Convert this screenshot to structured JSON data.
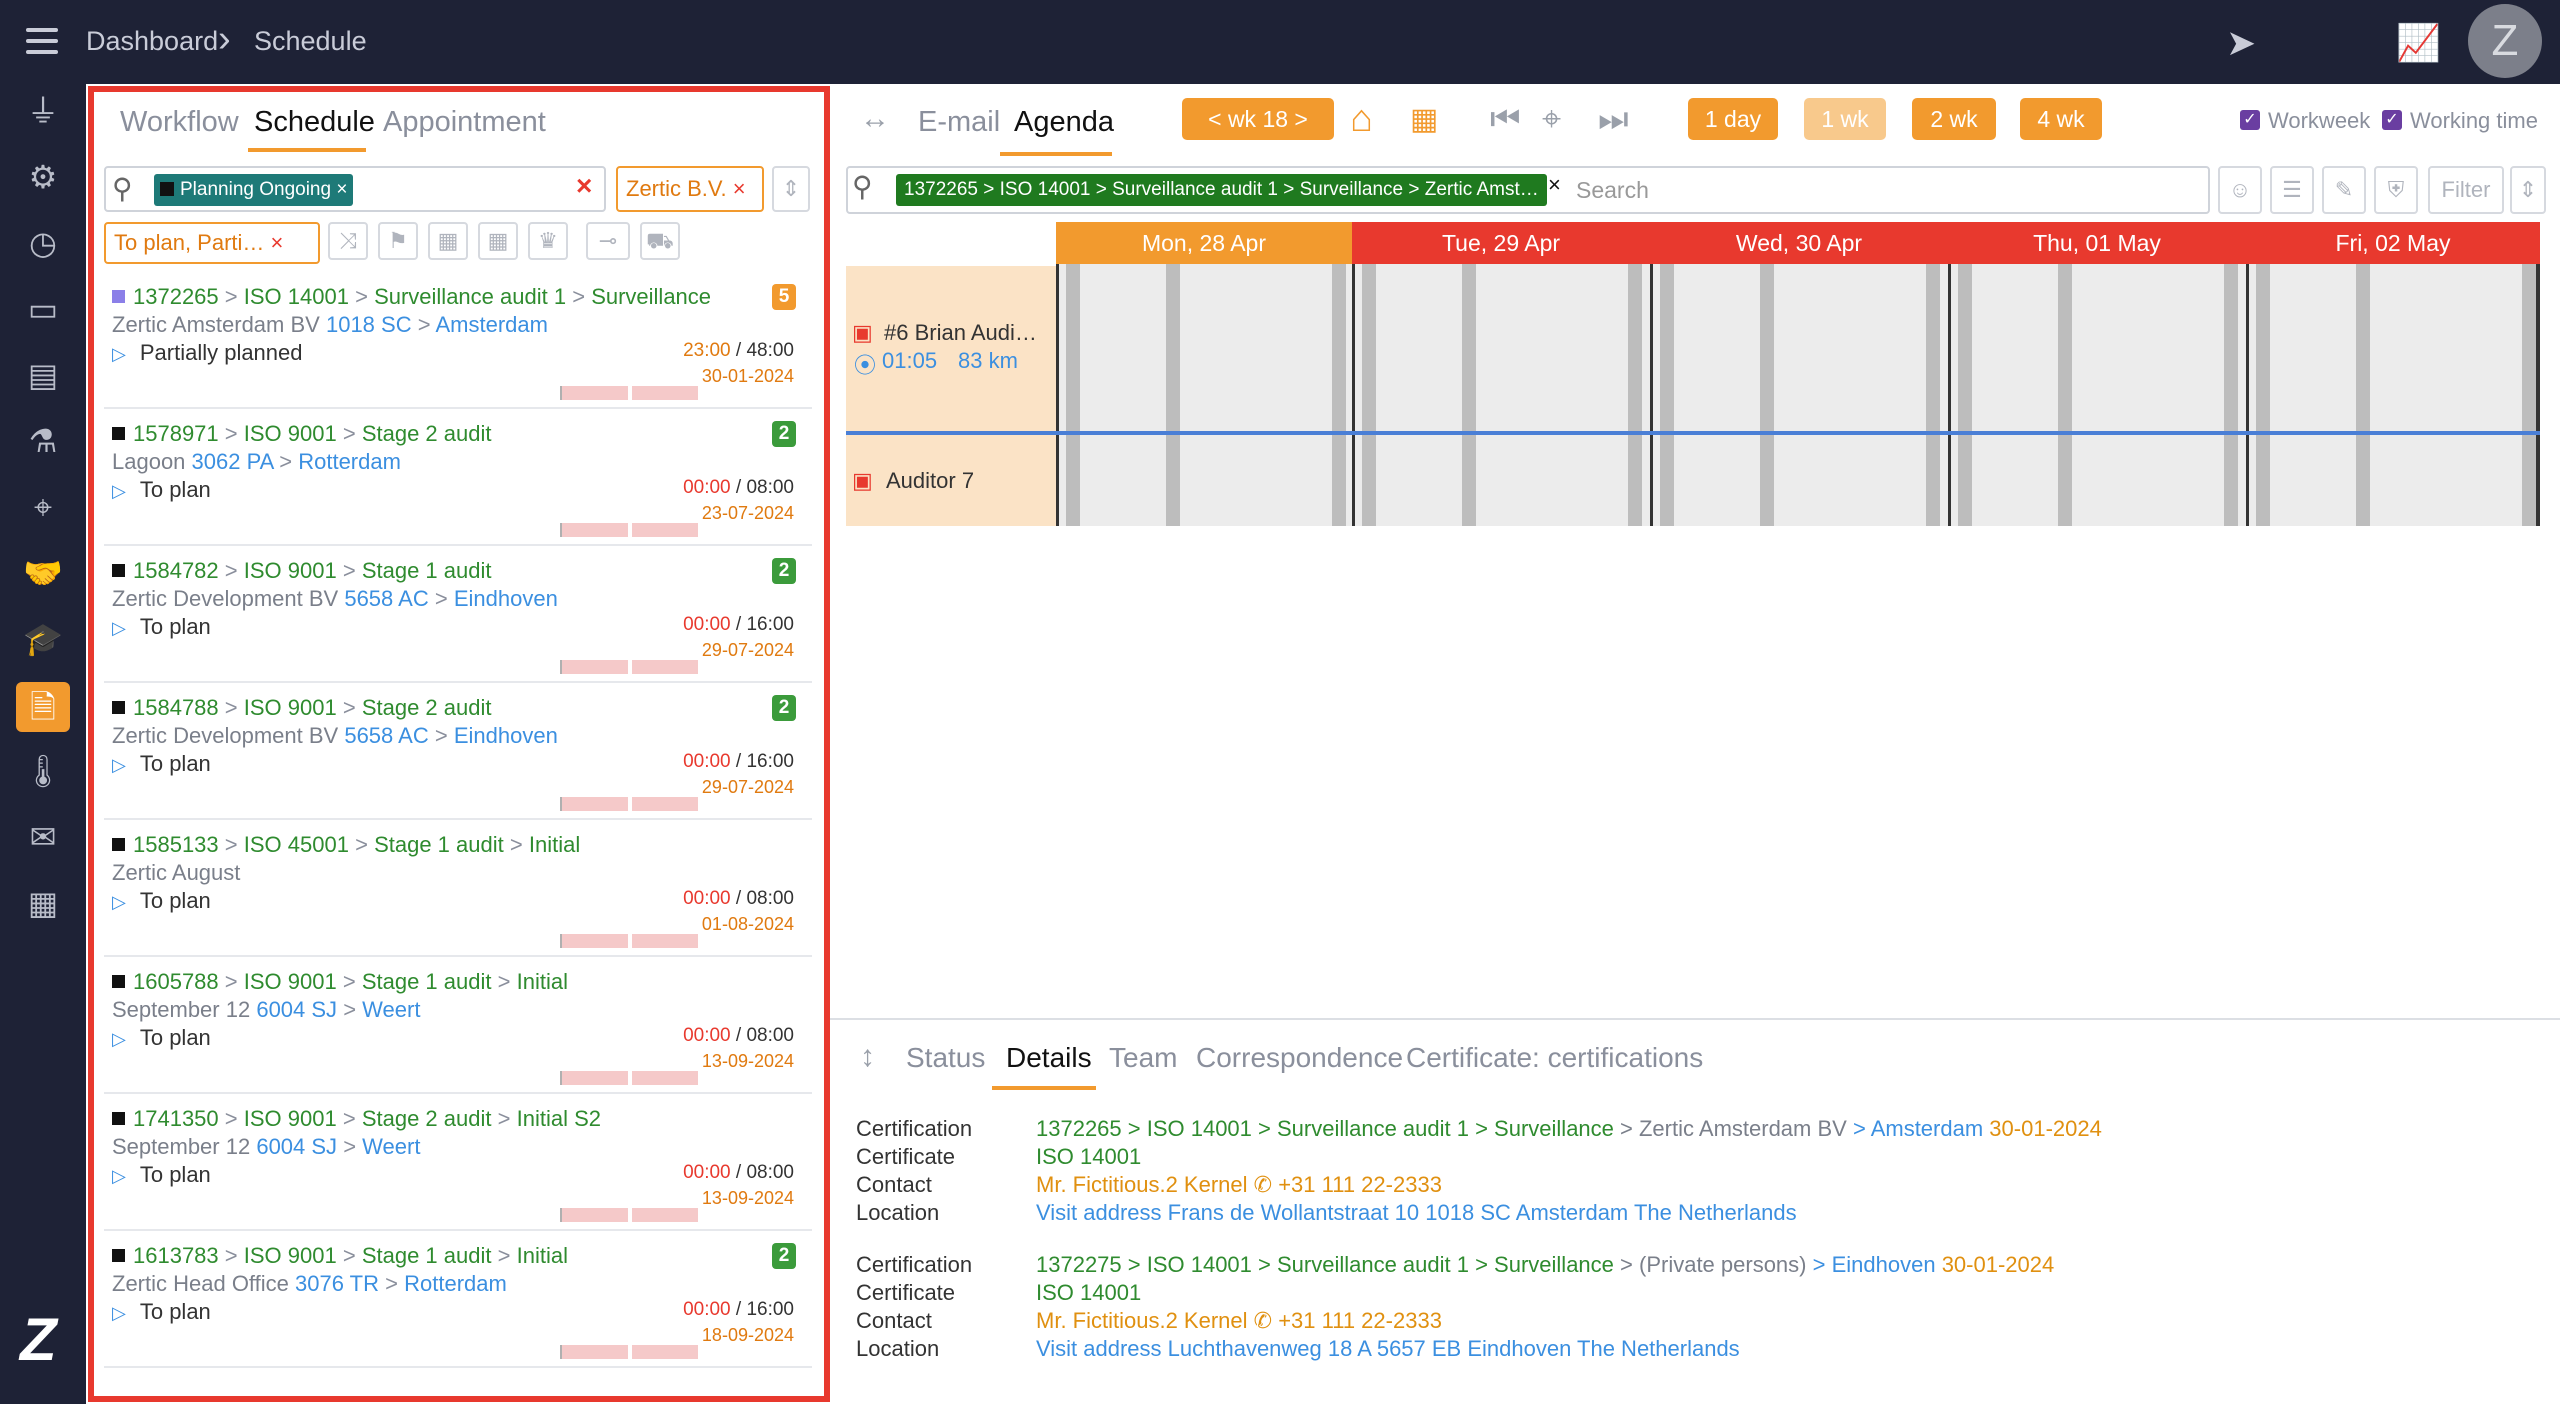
{
  "breadcrumb": [
    "Dashboard",
    "Schedule"
  ],
  "user_initial": "Z",
  "left_tabs": [
    "Workflow",
    "Schedule",
    "Appointment"
  ],
  "filters": {
    "status_chip": "Planning Ongoing",
    "company": "Zertic B.V.",
    "plan_filter": "To plan, Parti…"
  },
  "items": [
    {
      "id": "1372265",
      "norm": "ISO 14001",
      "stage": "Surveillance audit 1",
      "extra": "Surveillance",
      "org": "Zertic Amsterdam BV",
      "zip": "1018 SC",
      "city": "Amsterdam",
      "status": "Partially planned",
      "planned": "23:00",
      "total": "/ 48:00",
      "date": "30-01-2024",
      "badge": "5",
      "badge_color": "#f29a2e",
      "marker_color": "#8b7fe8"
    },
    {
      "id": "1578971",
      "norm": "ISO 9001",
      "stage": "Stage 2 audit",
      "extra": "",
      "org": "Lagoon",
      "zip": "3062 PA",
      "city": "Rotterdam",
      "status": "To plan",
      "planned": "00:00",
      "total": "/ 08:00",
      "date": "23-07-2024",
      "badge": "2",
      "badge_color": "#3b9b3b",
      "marker_color": "#111111"
    },
    {
      "id": "1584782",
      "norm": "ISO 9001",
      "stage": "Stage 1 audit",
      "extra": "",
      "org": "Zertic Development BV",
      "zip": "5658 AC",
      "city": "Eindhoven",
      "status": "To plan",
      "planned": "00:00",
      "total": "/ 16:00",
      "date": "29-07-2024",
      "badge": "2",
      "badge_color": "#3b9b3b",
      "marker_color": "#111111"
    },
    {
      "id": "1584788",
      "norm": "ISO 9001",
      "stage": "Stage 2 audit",
      "extra": "",
      "org": "Zertic Development BV",
      "zip": "5658 AC",
      "city": "Eindhoven",
      "status": "To plan",
      "planned": "00:00",
      "total": "/ 16:00",
      "date": "29-07-2024",
      "badge": "2",
      "badge_color": "#3b9b3b",
      "marker_color": "#111111"
    },
    {
      "id": "1585133",
      "norm": "ISO 45001",
      "stage": "Stage 1 audit",
      "extra": "Initial",
      "org": "Zertic August",
      "zip": "",
      "city": "",
      "status": "To plan",
      "planned": "00:00",
      "total": "/ 08:00",
      "date": "01-08-2024",
      "badge": "",
      "badge_color": "",
      "marker_color": "#111111"
    },
    {
      "id": "1605788",
      "norm": "ISO 9001",
      "stage": "Stage 1 audit",
      "extra": "Initial",
      "org": "September 12",
      "zip": "6004 SJ",
      "city": "Weert",
      "status": "To plan",
      "planned": "00:00",
      "total": "/ 08:00",
      "date": "13-09-2024",
      "badge": "",
      "badge_color": "",
      "marker_color": "#111111"
    },
    {
      "id": "1741350",
      "norm": "ISO 9001",
      "stage": "Stage 2 audit",
      "extra": "Initial S2",
      "org": "September 12",
      "zip": "6004 SJ",
      "city": "Weert",
      "status": "To plan",
      "planned": "00:00",
      "total": "/ 08:00",
      "date": "13-09-2024",
      "badge": "",
      "badge_color": "",
      "marker_color": "#111111"
    },
    {
      "id": "1613783",
      "norm": "ISO 9001",
      "stage": "Stage 1 audit",
      "extra": "Initial",
      "org": "Zertic Head Office",
      "zip": "3076 TR",
      "city": "Rotterdam",
      "status": "To plan",
      "planned": "00:00",
      "total": "/ 16:00",
      "date": "18-09-2024",
      "badge": "2",
      "badge_color": "#3b9b3b",
      "marker_color": "#111111"
    }
  ],
  "right_tabs": [
    "E-mail",
    "Agenda"
  ],
  "week_btn": "<  wk 18  >",
  "range_btns": [
    "1 day",
    "1 wk",
    "2 wk",
    "4 wk"
  ],
  "checks": [
    "Workweek",
    "Working time"
  ],
  "search_chip": "1372265 > ISO 14001 > Surveillance audit 1 > Surveillance > Zertic Amst…",
  "search_placeholder": "Search",
  "filter_label": "Filter",
  "days": [
    "Mon, 28 Apr",
    "Tue, 29 Apr",
    "Wed, 30 Apr",
    "Thu, 01 May",
    "Fri, 02 May"
  ],
  "resources": [
    {
      "name": "#6 Brian Audi…",
      "time": "01:05",
      "distance": "83 km"
    },
    {
      "name": "Auditor 7"
    }
  ],
  "lower_tabs": [
    "Status",
    "Details",
    "Team",
    "Correspondence",
    "Certificate: certifications"
  ],
  "details": [
    {
      "certification": "1372265 > ISO 14001 > Surveillance audit 1 > Surveillance",
      "org": "> Zertic Amsterdam BV",
      "city": "> Amsterdam",
      "date": "30-01-2024",
      "certificate": "ISO 14001",
      "contact": "Mr. Fictitious.2 Kernel",
      "phone": "+31 111 22-2333",
      "location": "Visit address Frans de Wollantstraat 10 1018 SC Amsterdam The Netherlands"
    },
    {
      "certification": "1372275 > ISO 14001 > Surveillance audit 1 > Surveillance",
      "org": "> (Private persons)",
      "city": "> Eindhoven",
      "date": "30-01-2024",
      "certificate": "ISO 14001",
      "contact": "Mr. Fictitious.2 Kernel",
      "phone": "+31 111 22-2333",
      "location": "Visit address Luchthavenweg 18 A 5657 EB Eindhoven The Netherlands"
    }
  ],
  "detail_labels": [
    "Certification",
    "Certificate",
    "Contact",
    "Location"
  ]
}
